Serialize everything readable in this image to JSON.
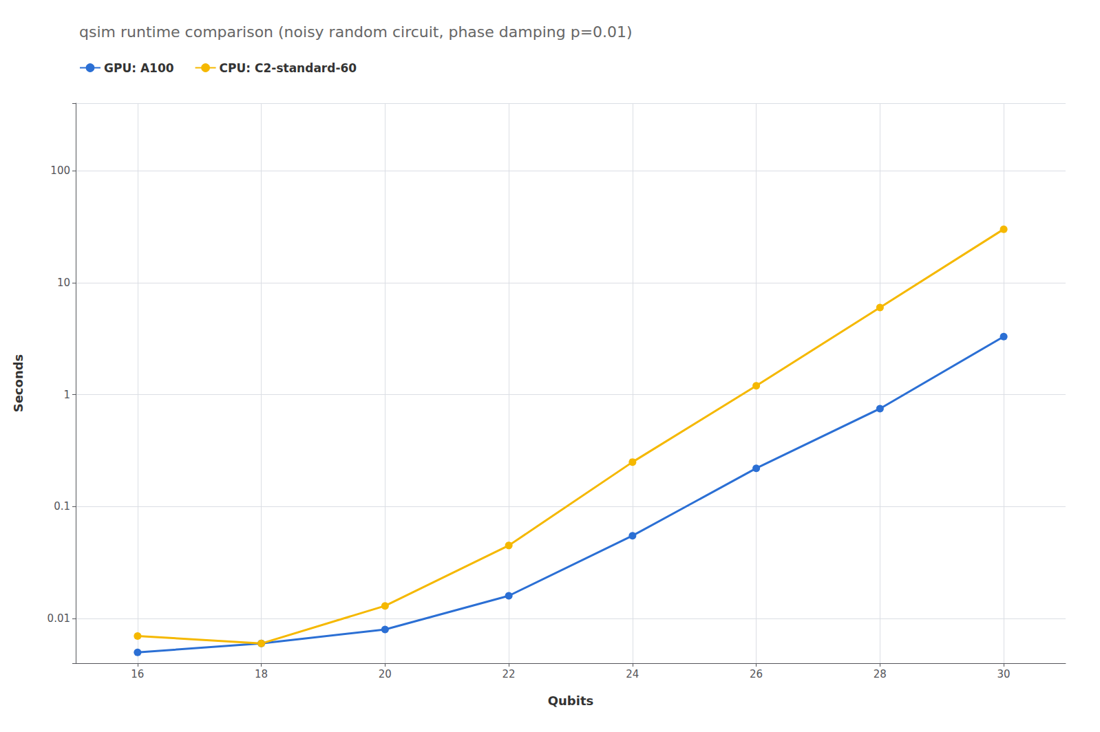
{
  "chart_data": {
    "type": "line",
    "title": "qsim runtime comparison (noisy random circuit, phase damping p=0.01)",
    "xlabel": "Qubits",
    "ylabel": "Seconds",
    "x": [
      16,
      18,
      20,
      22,
      24,
      26,
      28,
      30
    ],
    "series": [
      {
        "name": "GPU: A100",
        "color": "#2B6FD4",
        "marker": "circle",
        "values": [
          0.005,
          0.006,
          0.008,
          0.016,
          0.055,
          0.22,
          0.75,
          3.3
        ]
      },
      {
        "name": "CPU: C2-standard-60",
        "color": "#F5B800",
        "marker": "circle",
        "values": [
          0.007,
          0.006,
          0.013,
          0.045,
          0.25,
          1.2,
          6.0,
          30.0
        ]
      }
    ],
    "xlim": [
      15,
      31
    ],
    "xticks": [
      16,
      18,
      20,
      22,
      24,
      26,
      28,
      30
    ],
    "ylim": [
      0.004,
      400
    ],
    "yticks": [
      0.01,
      0.1,
      1,
      10,
      100
    ],
    "log": "y",
    "grid": true,
    "legend": "upper left"
  }
}
